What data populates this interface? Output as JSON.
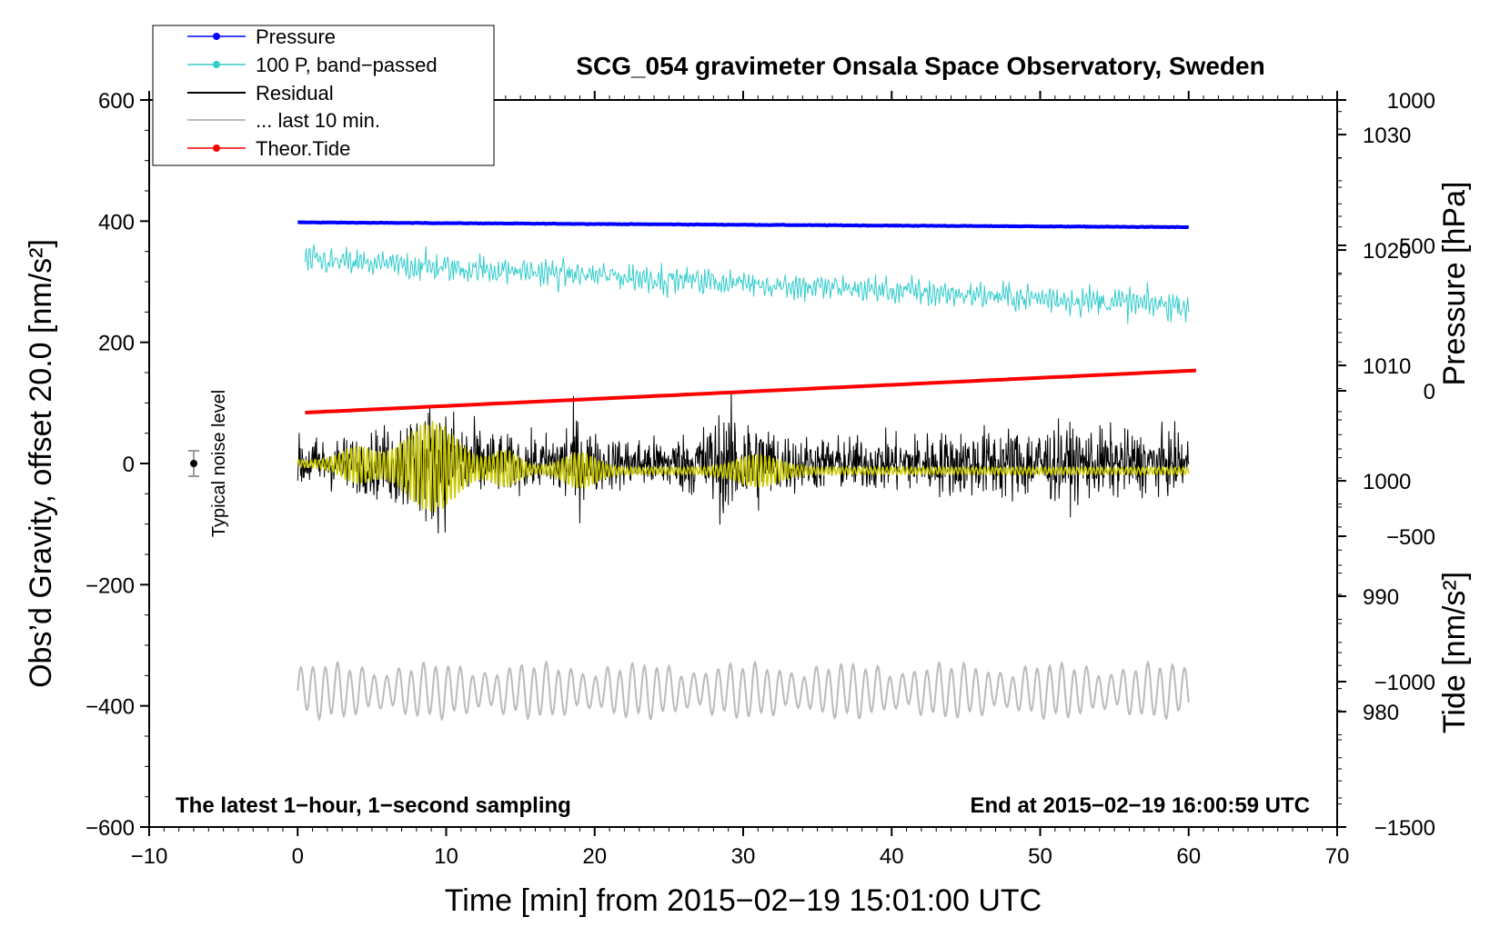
{
  "chart_data": {
    "type": "line",
    "title": "SCG_054 gravimeter Onsala Space Observatory, Sweden",
    "xlabel": "Time [min] from 2015−02−19 15:01:00 UTC",
    "ylabel_left": "Obs’d Gravity, offset 20.0 [nm/s²]",
    "ylabel_right_top": "Pressure [hPa]",
    "ylabel_right_bottom": "Tide [nm/s²]",
    "xlim": [
      -10,
      70
    ],
    "ylim_left": [
      -600,
      600
    ],
    "pressure_axis_range": [
      970,
      1033
    ],
    "tide_axis_range": [
      -1500,
      1000
    ],
    "x_ticks": [
      "−10",
      "0",
      "10",
      "20",
      "30",
      "40",
      "50",
      "60",
      "70"
    ],
    "x_tick_values": [
      -10,
      0,
      10,
      20,
      30,
      40,
      50,
      60,
      70
    ],
    "y_left_ticks": [
      "600",
      "400",
      "200",
      "0",
      "−200",
      "−400",
      "−600"
    ],
    "y_left_tick_values": [
      600,
      400,
      200,
      0,
      -200,
      -400,
      -600
    ],
    "y_pressure_ticks": [
      "1030",
      "1020",
      "1010",
      "1000",
      "990",
      "980"
    ],
    "y_pressure_tick_values": [
      1030,
      1020,
      1010,
      1000,
      990,
      980
    ],
    "y_tide_ticks": [
      "1000",
      "500",
      "0",
      "−500",
      "−1000",
      "−1500"
    ],
    "y_tide_tick_values": [
      1000,
      500,
      0,
      -500,
      -1000,
      -1500
    ],
    "legend": [
      {
        "label": "Pressure",
        "color": "#0000ff",
        "marker": true
      },
      {
        "label": "100 P, band−passed",
        "color": "#33cccc",
        "marker": true
      },
      {
        "label": "Residual",
        "color": "#000000",
        "marker": false
      },
      {
        "label": "... last 10 min.",
        "color": "#bbbbbb",
        "marker": false
      },
      {
        "label": "Theor.Tide",
        "color": "#ff0000",
        "marker": true
      }
    ],
    "noise_label": "Typical noise level",
    "noise_marker": {
      "x": -7,
      "y": 0,
      "error": 20
    },
    "annotation_left": "The latest 1−hour, 1−second sampling",
    "annotation_right": "End at 2015−02−19 16:00:59 UTC",
    "series": [
      {
        "name": "Pressure",
        "axis": "gravity_units",
        "color": "#0000ff",
        "x": [
          0,
          60
        ],
        "y": [
          398,
          390
        ]
      },
      {
        "name": "100 P, band−passed",
        "axis": "gravity_units",
        "color": "#33cccc",
        "x_range": [
          0.5,
          60
        ],
        "trend": [
          335,
          260
        ],
        "amplitude": 25
      },
      {
        "name": "Residual",
        "axis": "gravity_units",
        "color": "#000000",
        "x_range": [
          0,
          60
        ],
        "center": 0,
        "amplitude": 45
      },
      {
        "name": "Filtered residual",
        "axis": "gravity_units",
        "color": "#cccc00",
        "x_range": [
          0,
          60
        ],
        "center": 0,
        "amplitude": 30
      },
      {
        "name": "Theor.Tide",
        "axis": "tide",
        "color": "#ff0000",
        "x": [
          0.5,
          60.5
        ],
        "y": [
          -75,
          70
        ]
      },
      {
        "name": "... last 10 min.",
        "axis": "gravity_units",
        "color": "#bbbbbb",
        "x_range": [
          0,
          60
        ],
        "center": -375,
        "amplitude": 35
      }
    ]
  }
}
